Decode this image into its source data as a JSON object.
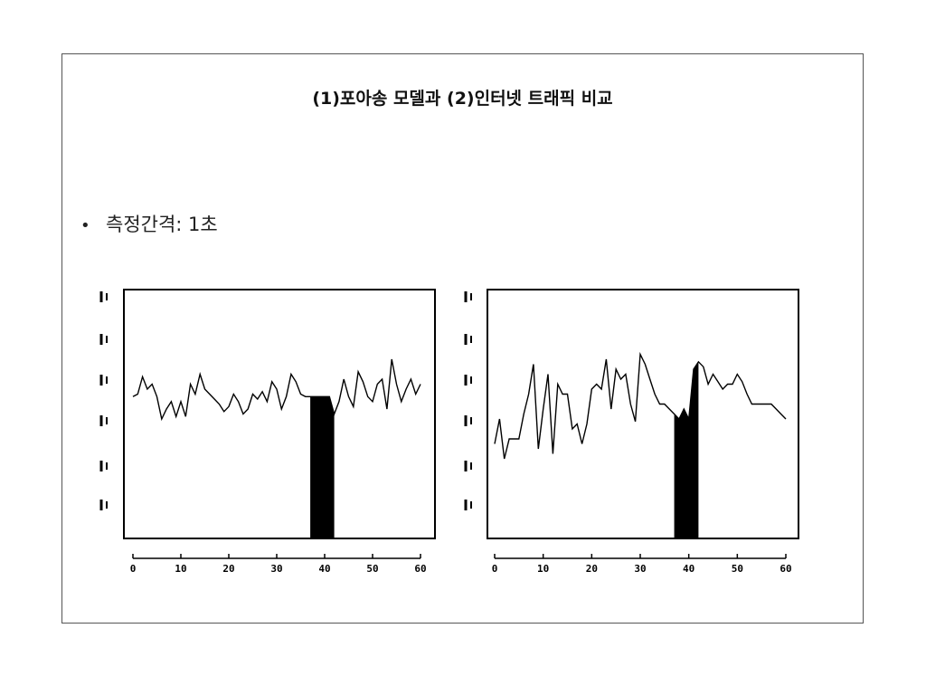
{
  "slide": {
    "title": "(1)포아송 모델과 (2)인터넷 트래픽 비교",
    "bullet": "측정간격: 1초",
    "bullet_symbol": "•"
  },
  "chart_data": [
    {
      "type": "line",
      "title": "",
      "xlabel": "",
      "ylabel": "",
      "x_ticks": [
        "0",
        "10",
        "20",
        "30",
        "40",
        "50",
        "60"
      ],
      "xlim": [
        0,
        60
      ],
      "ylim": [
        0,
        100
      ],
      "highlight_range": [
        37,
        42
      ],
      "series": [
        {
          "x": [
            0,
            1,
            2,
            3,
            4,
            5,
            6,
            7,
            8,
            9,
            10,
            11,
            12,
            13,
            14,
            15,
            16,
            17,
            18,
            19,
            20,
            21,
            22,
            23,
            24,
            25,
            26,
            27,
            28,
            29,
            30,
            31,
            32,
            33,
            34,
            35,
            36,
            37,
            38,
            39,
            40,
            41,
            42,
            43,
            44,
            45,
            46,
            47,
            48,
            49,
            50,
            51,
            52,
            53,
            54,
            55,
            56,
            57,
            58,
            59,
            60
          ],
          "values": [
            57,
            58,
            65,
            60,
            62,
            57,
            48,
            52,
            55,
            49,
            55,
            49,
            62,
            58,
            66,
            60,
            58,
            56,
            54,
            51,
            53,
            58,
            55,
            50,
            52,
            58,
            56,
            59,
            55,
            63,
            60,
            52,
            57,
            66,
            63,
            58,
            57,
            57,
            57,
            57,
            57,
            57,
            50,
            55,
            64,
            57,
            53,
            67,
            63,
            57,
            55,
            62,
            64,
            52,
            72,
            62,
            55,
            60,
            64,
            58,
            62
          ]
        }
      ]
    },
    {
      "type": "line",
      "title": "",
      "xlabel": "",
      "ylabel": "",
      "x_ticks": [
        "0",
        "10",
        "20",
        "30",
        "40",
        "50",
        "60"
      ],
      "xlim": [
        0,
        60
      ],
      "ylim": [
        0,
        100
      ],
      "highlight_range": [
        37,
        42
      ],
      "series": [
        {
          "x": [
            0,
            1,
            2,
            3,
            4,
            5,
            6,
            7,
            8,
            9,
            10,
            11,
            12,
            13,
            14,
            15,
            16,
            17,
            18,
            19,
            20,
            21,
            22,
            23,
            24,
            25,
            26,
            27,
            28,
            29,
            30,
            31,
            32,
            33,
            34,
            35,
            36,
            37,
            38,
            39,
            40,
            41,
            42,
            43,
            44,
            45,
            46,
            47,
            48,
            49,
            50,
            51,
            52,
            53,
            54,
            55,
            56,
            57,
            58,
            59,
            60
          ],
          "values": [
            38,
            48,
            32,
            40,
            40,
            40,
            50,
            58,
            70,
            36,
            52,
            66,
            34,
            62,
            58,
            58,
            44,
            46,
            38,
            46,
            60,
            62,
            60,
            72,
            52,
            68,
            64,
            66,
            54,
            47,
            74,
            70,
            64,
            58,
            54,
            54,
            52,
            50,
            48,
            52,
            48,
            68,
            71,
            69,
            62,
            66,
            63,
            60,
            62,
            62,
            66,
            63,
            58,
            54,
            54,
            54,
            54,
            54,
            52,
            50,
            48
          ]
        }
      ]
    }
  ]
}
